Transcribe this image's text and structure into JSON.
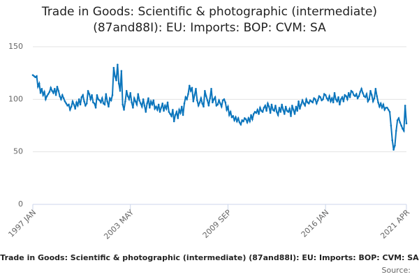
{
  "chart_data": {
    "type": "line",
    "title": [
      "Trade in Goods: Scientific & photographic (intermediate)",
      "(87and88I): EU: Imports: BOP: CVM: SA"
    ],
    "x_label": "Trade in Goods: Scientific & photographic (intermediate) (87and88I): EU: Imports: BOP: CVM: SA",
    "source": "Source:",
    "color": "#0b75bc",
    "grid": true,
    "ylim": [
      0,
      150
    ],
    "yticks": [
      0,
      50,
      100,
      150
    ],
    "xticks": [
      "1997 JAN",
      "2003 MAY",
      "2009 SEP",
      "2016 JAN",
      "2021 APR"
    ],
    "x": [
      "1997 JAN",
      "1997 FEB",
      "1997 MAR",
      "1997 APR",
      "1997 MAY",
      "1997 JUN",
      "1997 JUL",
      "1997 AUG",
      "1997 SEP",
      "1997 OCT",
      "1997 NOV",
      "1997 DEC",
      "1998 JAN",
      "1998 FEB",
      "1998 MAR",
      "1998 APR",
      "1998 MAY",
      "1998 JUN",
      "1998 JUL",
      "1998 AUG",
      "1998 SEP",
      "1998 OCT",
      "1998 NOV",
      "1998 DEC",
      "1999 JAN",
      "1999 FEB",
      "1999 MAR",
      "1999 APR",
      "1999 MAY",
      "1999 JUN",
      "1999 JUL",
      "1999 AUG",
      "1999 SEP",
      "1999 OCT",
      "1999 NOV",
      "1999 DEC",
      "2000 JAN",
      "2000 FEB",
      "2000 MAR",
      "2000 APR",
      "2000 MAY",
      "2000 JUN",
      "2000 JUL",
      "2000 AUG",
      "2000 SEP",
      "2000 OCT",
      "2000 NOV",
      "2000 DEC",
      "2001 JAN",
      "2001 FEB",
      "2001 MAR",
      "2001 APR",
      "2001 MAY",
      "2001 JUN",
      "2001 JUL",
      "2001 AUG",
      "2001 SEP",
      "2001 OCT",
      "2001 NOV",
      "2001 DEC",
      "2002 JAN",
      "2002 FEB",
      "2002 MAR",
      "2002 APR",
      "2002 MAY",
      "2002 JUN",
      "2002 JUL",
      "2002 AUG",
      "2002 SEP",
      "2002 OCT",
      "2002 NOV",
      "2002 DEC",
      "2003 JAN",
      "2003 FEB",
      "2003 MAR",
      "2003 APR",
      "2003 MAY",
      "2003 JUN",
      "2003 JUL",
      "2003 AUG",
      "2003 SEP",
      "2003 OCT",
      "2003 NOV",
      "2003 DEC",
      "2004 JAN",
      "2004 FEB",
      "2004 MAR",
      "2004 APR",
      "2004 MAY",
      "2004 JUN",
      "2004 JUL",
      "2004 AUG",
      "2004 SEP",
      "2004 OCT",
      "2004 NOV",
      "2004 DEC",
      "2005 JAN",
      "2005 FEB",
      "2005 MAR",
      "2005 APR",
      "2005 MAY",
      "2005 JUN",
      "2005 JUL",
      "2005 AUG",
      "2005 SEP",
      "2005 OCT",
      "2005 NOV",
      "2005 DEC",
      "2006 JAN",
      "2006 FEB",
      "2006 MAR",
      "2006 APR",
      "2006 MAY",
      "2006 JUN",
      "2006 JUL",
      "2006 AUG",
      "2006 SEP",
      "2006 OCT",
      "2006 NOV",
      "2006 DEC",
      "2007 JAN",
      "2007 FEB",
      "2007 MAR",
      "2007 APR",
      "2007 MAY",
      "2007 JUN",
      "2007 JUL",
      "2007 AUG",
      "2007 SEP",
      "2007 OCT",
      "2007 NOV",
      "2007 DEC",
      "2008 JAN",
      "2008 FEB",
      "2008 MAR",
      "2008 APR",
      "2008 MAY",
      "2008 JUN",
      "2008 JUL",
      "2008 AUG",
      "2008 SEP",
      "2008 OCT",
      "2008 NOV",
      "2008 DEC",
      "2009 JAN",
      "2009 FEB",
      "2009 MAR",
      "2009 APR",
      "2009 MAY",
      "2009 JUN",
      "2009 JUL",
      "2009 AUG",
      "2009 SEP",
      "2009 OCT",
      "2009 NOV",
      "2009 DEC",
      "2010 JAN",
      "2010 FEB",
      "2010 MAR",
      "2010 APR",
      "2010 MAY",
      "2010 JUN",
      "2010 JUL",
      "2010 AUG",
      "2010 SEP",
      "2010 OCT",
      "2010 NOV",
      "2010 DEC",
      "2011 JAN",
      "2011 FEB",
      "2011 MAR",
      "2011 APR",
      "2011 MAY",
      "2011 JUN",
      "2011 JUL",
      "2011 AUG",
      "2011 SEP",
      "2011 OCT",
      "2011 NOV",
      "2011 DEC",
      "2012 JAN",
      "2012 FEB",
      "2012 MAR",
      "2012 APR",
      "2012 MAY",
      "2012 JUN",
      "2012 JUL",
      "2012 AUG",
      "2012 SEP",
      "2012 OCT",
      "2012 NOV",
      "2012 DEC",
      "2013 JAN",
      "2013 FEB",
      "2013 MAR",
      "2013 APR",
      "2013 MAY",
      "2013 JUN",
      "2013 JUL",
      "2013 AUG",
      "2013 SEP",
      "2013 OCT",
      "2013 NOV",
      "2013 DEC",
      "2014 JAN",
      "2014 FEB",
      "2014 MAR",
      "2014 APR",
      "2014 MAY",
      "2014 JUN",
      "2014 JUL",
      "2014 AUG",
      "2014 SEP",
      "2014 OCT",
      "2014 NOV",
      "2014 DEC",
      "2015 JAN",
      "2015 FEB",
      "2015 MAR",
      "2015 APR",
      "2015 MAY",
      "2015 JUN",
      "2015 JUL",
      "2015 AUG",
      "2015 SEP",
      "2015 OCT",
      "2015 NOV",
      "2015 DEC",
      "2016 JAN",
      "2016 FEB",
      "2016 MAR",
      "2016 APR",
      "2016 MAY",
      "2016 JUN",
      "2016 JUL",
      "2016 AUG",
      "2016 SEP",
      "2016 OCT",
      "2016 NOV",
      "2016 DEC",
      "2017 JAN",
      "2017 FEB",
      "2017 MAR",
      "2017 APR",
      "2017 MAY",
      "2017 JUN",
      "2017 JUL",
      "2017 AUG",
      "2017 SEP",
      "2017 OCT",
      "2017 NOV",
      "2017 DEC",
      "2018 JAN",
      "2018 FEB",
      "2018 MAR",
      "2018 APR",
      "2018 MAY",
      "2018 JUN",
      "2018 JUL",
      "2018 AUG",
      "2018 SEP",
      "2018 OCT",
      "2018 NOV",
      "2018 DEC",
      "2019 JAN",
      "2019 FEB",
      "2019 MAR",
      "2019 APR",
      "2019 MAY",
      "2019 JUN",
      "2019 JUL",
      "2019 AUG",
      "2019 SEP",
      "2019 OCT",
      "2019 NOV",
      "2019 DEC",
      "2020 JAN",
      "2020 FEB",
      "2020 MAR",
      "2020 APR",
      "2020 MAY",
      "2020 JUN",
      "2020 JUL",
      "2020 AUG",
      "2020 SEP",
      "2020 OCT",
      "2020 NOV",
      "2020 DEC",
      "2021 JAN",
      "2021 FEB",
      "2021 MAR",
      "2021 APR"
    ],
    "values": [
      123,
      122,
      121,
      122,
      112,
      115,
      106,
      110,
      104,
      107,
      100,
      103,
      105,
      107,
      111,
      108,
      106,
      110,
      104,
      112,
      108,
      103,
      100,
      104,
      101,
      98,
      96,
      94,
      95,
      90,
      93,
      98,
      95,
      91,
      97,
      94,
      100,
      95,
      102,
      104,
      98,
      94,
      96,
      108,
      105,
      100,
      104,
      97,
      96,
      92,
      104,
      100,
      99,
      97,
      101,
      96,
      95,
      105,
      98,
      93,
      101,
      99,
      104,
      130,
      122,
      118,
      133,
      115,
      108,
      127,
      95,
      90,
      98,
      108,
      103,
      100,
      106,
      97,
      92,
      101,
      98,
      95,
      105,
      99,
      96,
      93,
      100,
      94,
      88,
      96,
      101,
      92,
      98,
      95,
      99,
      91,
      93,
      90,
      95,
      88,
      92,
      96,
      89,
      94,
      91,
      97,
      88,
      86,
      84,
      90,
      79,
      85,
      88,
      82,
      90,
      87,
      93,
      85,
      96,
      102,
      100,
      105,
      113,
      108,
      111,
      98,
      104,
      110,
      99,
      94,
      97,
      101,
      96,
      93,
      108,
      103,
      99,
      94,
      101,
      110,
      97,
      100,
      102,
      94,
      95,
      99,
      96,
      93,
      99,
      100,
      97,
      90,
      93,
      85,
      88,
      83,
      84,
      80,
      83,
      79,
      82,
      78,
      76,
      80,
      79,
      82,
      81,
      78,
      82,
      79,
      85,
      81,
      86,
      88,
      87,
      90,
      86,
      92,
      89,
      88,
      92,
      94,
      89,
      96,
      93,
      87,
      95,
      90,
      89,
      94,
      88,
      85,
      92,
      88,
      95,
      90,
      86,
      93,
      89,
      88,
      91,
      84,
      94,
      90,
      86,
      93,
      89,
      98,
      91,
      95,
      99,
      96,
      94,
      100,
      97,
      96,
      99,
      98,
      97,
      101,
      100,
      96,
      99,
      103,
      102,
      99,
      100,
      105,
      104,
      101,
      99,
      103,
      98,
      101,
      97,
      106,
      100,
      98,
      102,
      95,
      100,
      102,
      98,
      104,
      103,
      100,
      106,
      102,
      108,
      107,
      104,
      103,
      105,
      101,
      103,
      107,
      110,
      106,
      103,
      102,
      105,
      98,
      100,
      108,
      104,
      98,
      101,
      110,
      103,
      97,
      93,
      96,
      92,
      95,
      90,
      92,
      92,
      90,
      88,
      75,
      61,
      52,
      56,
      70,
      80,
      82,
      78,
      75,
      72,
      70,
      94,
      77
    ]
  }
}
